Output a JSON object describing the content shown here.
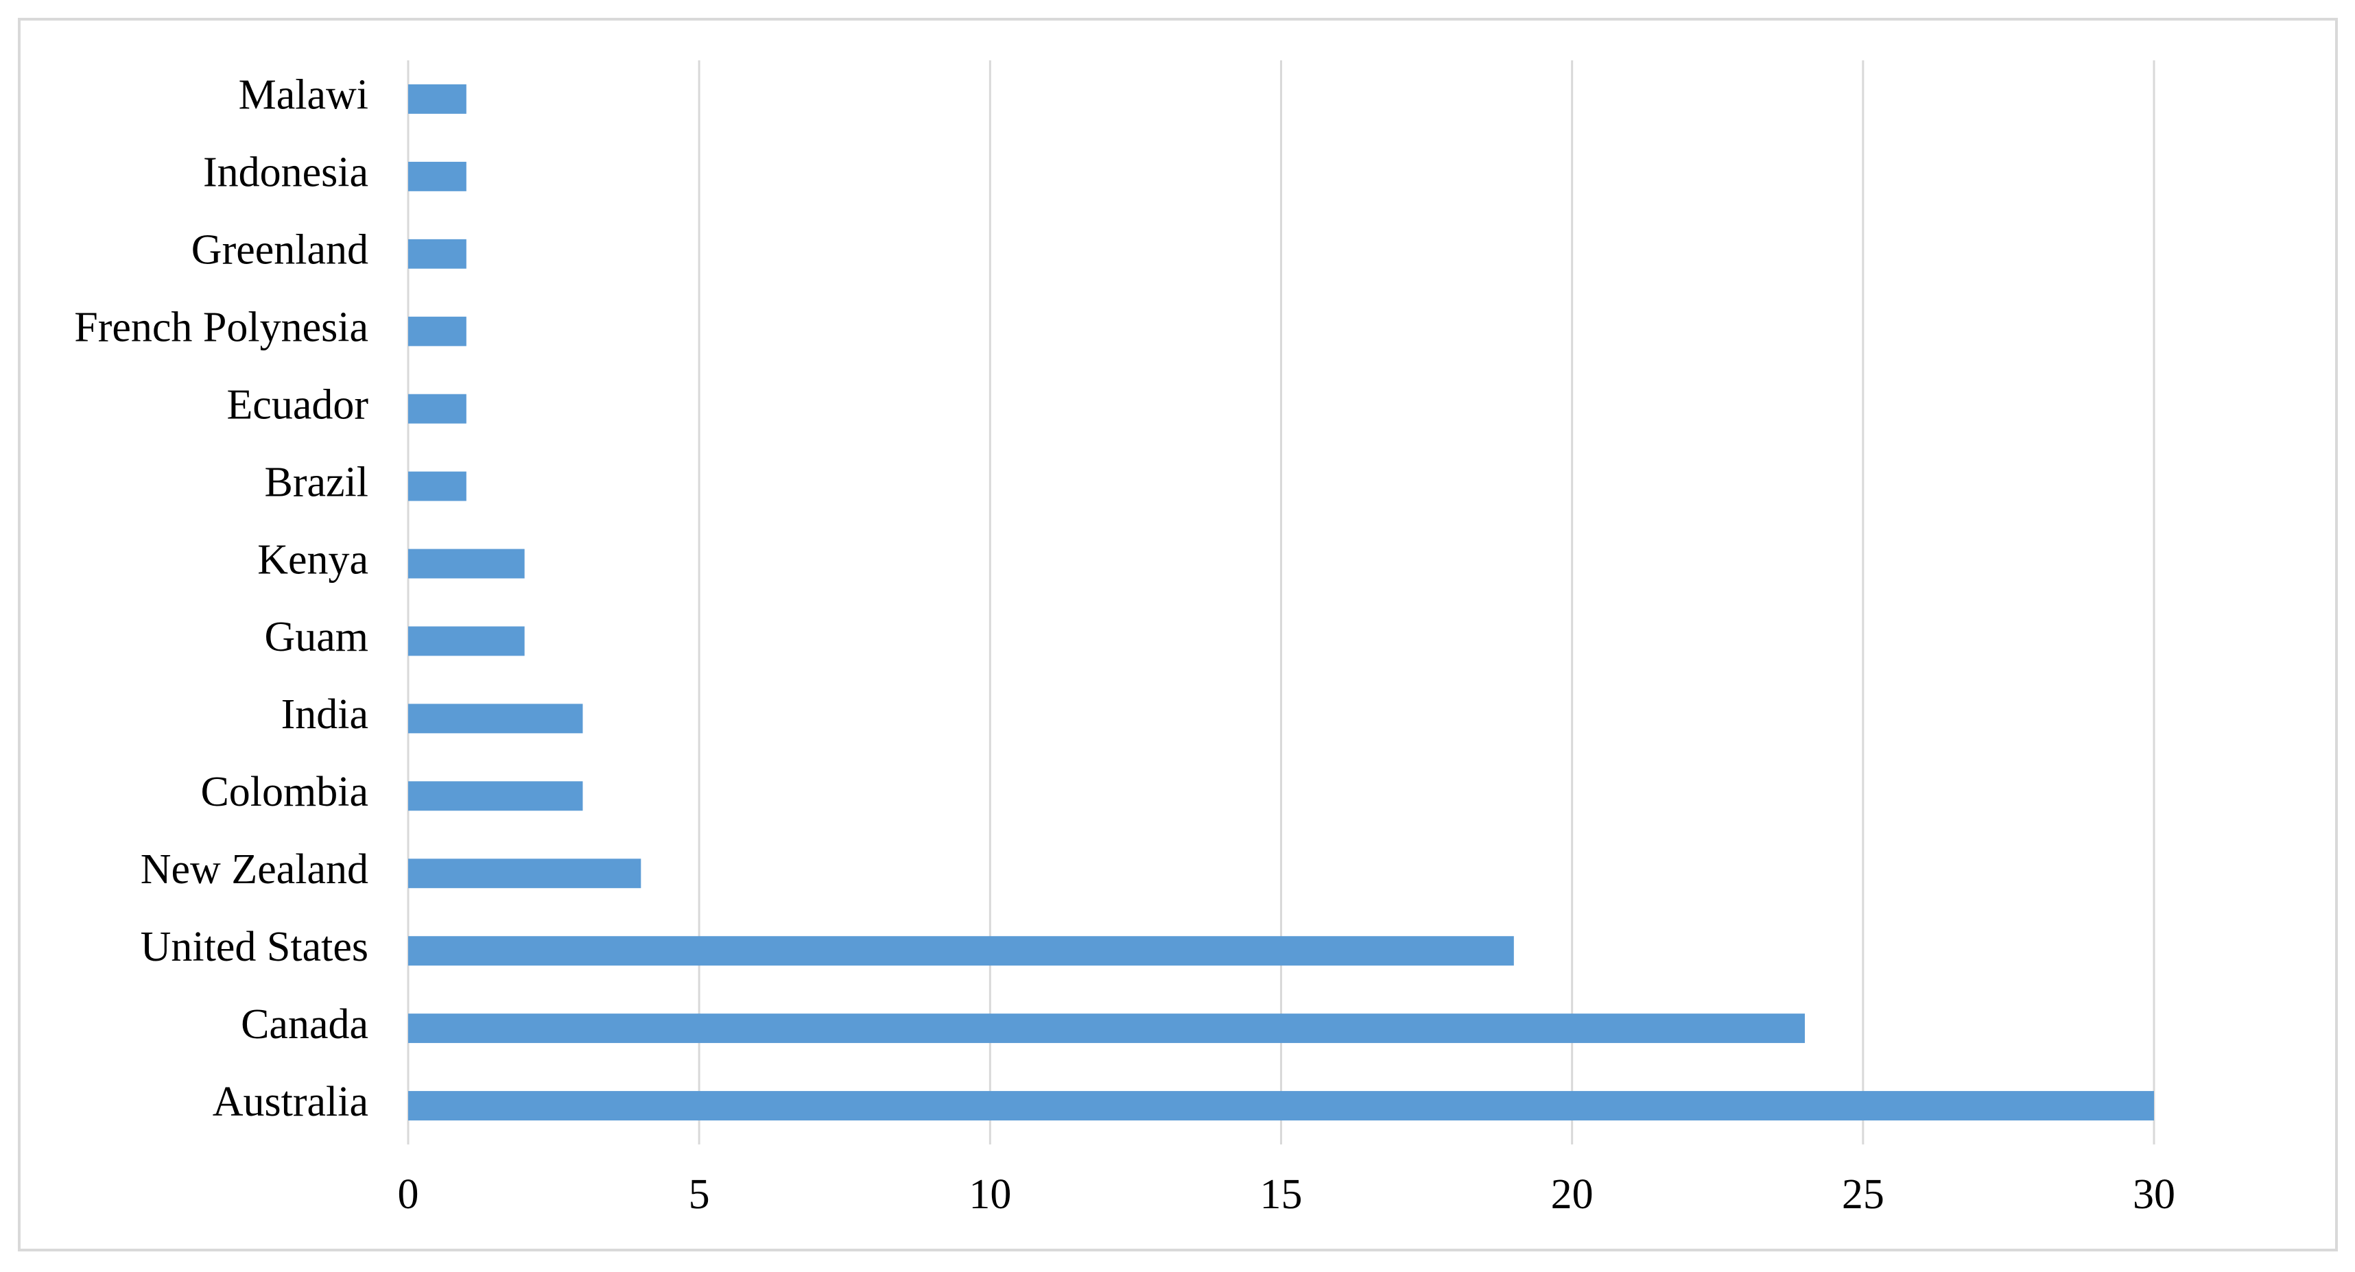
{
  "chart_data": {
    "type": "hbar",
    "categories": [
      "Australia",
      "Canada",
      "United States",
      "New Zealand",
      "Colombia",
      "India",
      "Guam",
      "Kenya",
      "Brazil",
      "Ecuador",
      "French Polynesia",
      "Greenland",
      "Indonesia",
      "Malawi"
    ],
    "values": [
      30,
      24,
      19,
      4,
      3,
      3,
      2,
      2,
      1,
      1,
      1,
      1,
      1,
      1
    ],
    "color": "#5b9bd5",
    "xlim": [
      0,
      30
    ],
    "xticks": [
      0,
      5,
      10,
      15,
      20,
      25,
      30
    ],
    "grid": true
  }
}
